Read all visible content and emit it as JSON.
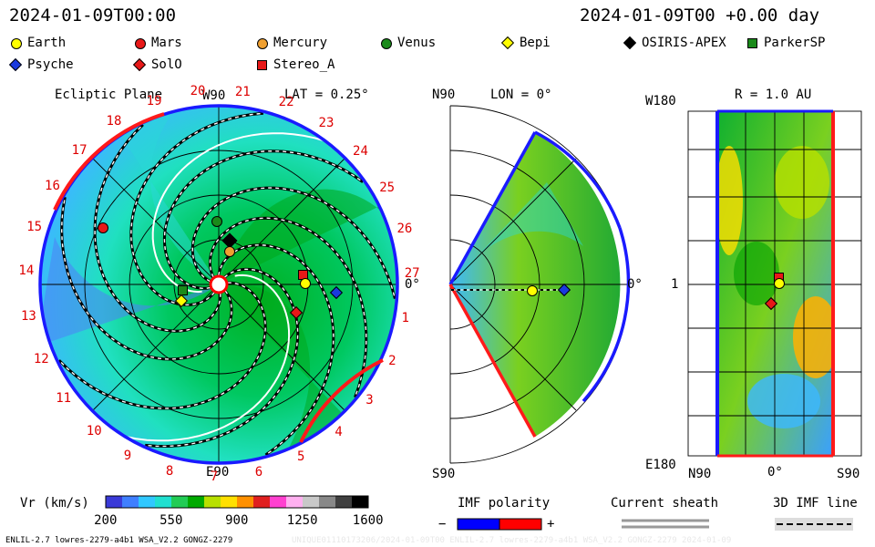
{
  "header": {
    "date_left": "2024-01-09T00:00",
    "date_right": "2024-01-09T00 +0.00 day"
  },
  "legend": [
    {
      "name": "Earth",
      "shape": "circle",
      "color": "#ffff00"
    },
    {
      "name": "Mars",
      "shape": "circle",
      "color": "#e81818"
    },
    {
      "name": "Mercury",
      "shape": "circle",
      "color": "#f0a030"
    },
    {
      "name": "Venus",
      "shape": "circle",
      "color": "#1a8a1a"
    },
    {
      "name": "Bepi",
      "shape": "diamond",
      "color": "#ffff00"
    },
    {
      "name": "OSIRIS-APEX",
      "shape": "diamond",
      "color": "#000000"
    },
    {
      "name": "ParkerSP",
      "shape": "square",
      "color": "#1a8a1a"
    },
    {
      "name": "Psyche",
      "shape": "diamond",
      "color": "#1a3adf"
    },
    {
      "name": "SolO",
      "shape": "diamond",
      "color": "#e81818"
    },
    {
      "name": "Stereo_A",
      "shape": "square",
      "color": "#e81818"
    }
  ],
  "panels": {
    "ecliptic": {
      "title": "Ecliptic Plane",
      "lat": "LAT = 0.25°",
      "label_top": "W90",
      "label_bottom": "E90",
      "label_right": "0°",
      "carrington": [
        "1",
        "2",
        "3",
        "4",
        "5",
        "6",
        "7",
        "8",
        "9",
        "10",
        "11",
        "12",
        "13",
        "14",
        "15",
        "16",
        "17",
        "18",
        "19",
        "20",
        "21",
        "22",
        "23",
        "24",
        "25",
        "26",
        "27"
      ]
    },
    "meridional": {
      "lon": "LON = 0°",
      "label_top": "N90",
      "label_bottom": "S90",
      "label_right": "0°"
    },
    "map": {
      "title": "R = 1.0 AU",
      "label_tl": "W180",
      "label_bl": "E180",
      "label_left_mid": "1",
      "x_labels": [
        "N90",
        "0°",
        "S90"
      ]
    }
  },
  "colorbar": {
    "label": "Vr (km/s)",
    "ticks": [
      "200",
      "550",
      "900",
      "1250",
      "1600"
    ],
    "colors": [
      "#3a3ad8",
      "#3f7fff",
      "#30c8ff",
      "#20e0d0",
      "#22cc55",
      "#00aa00",
      "#b8e000",
      "#ffe000",
      "#ff9000",
      "#e02020",
      "#ff40d0",
      "#ffb0f0",
      "#c8c8c8",
      "#888888",
      "#404040",
      "#000000"
    ]
  },
  "imf_polarity": {
    "label": "IMF polarity",
    "minus": "−",
    "plus": "+",
    "neg_color": "#0000ff",
    "pos_color": "#ff0000"
  },
  "current_sheath": {
    "label": "Current sheath"
  },
  "imf_line": {
    "label": "3D IMF line"
  },
  "footer": {
    "left": "ENLIL-2.7 lowres-2279-a4b1 WSA_V2.2 GONGZ-2279",
    "right": "UNIQUE01110173206/2024-01-09T00 ENLIL-2.7 lowres-2279-a4b1 WSA_V2.2 GONGZ-2279 2024-01-09"
  },
  "bodies_ecliptic": [
    {
      "name": "Earth",
      "r_au": 1.0,
      "lon_deg": 0
    },
    {
      "name": "Mars",
      "r_au": 1.38,
      "lon_deg": 168
    },
    {
      "name": "Mercury",
      "r_au": 0.31,
      "lon_deg": 112
    },
    {
      "name": "Venus",
      "r_au": 0.72,
      "lon_deg": 100
    }
  ]
}
